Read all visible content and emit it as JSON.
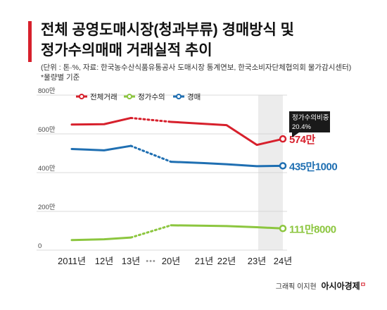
{
  "title_lines": [
    "전체 공영도매시장(청과부류) 경매방식 및",
    "정가수의매매 거래실적 추이"
  ],
  "source": "(단위 : 톤·%, 자료: 한국농수산식품유통공사 도매시장 통계연보, 한국소비자단체협의회 물가감시센터)",
  "note": "*물량별 기준",
  "credit": {
    "prefix": "그래픽 이지현",
    "brand": "아시아경제",
    "brand_mark": "ㅁ"
  },
  "colors": {
    "red": "#d7202c",
    "green": "#8cc63f",
    "blue": "#1f6fb2",
    "title_bar": "#d7202c"
  },
  "chart_data": {
    "type": "line",
    "categories": [
      "2011년",
      "12년",
      "13년",
      "20년",
      "21년",
      "22년",
      "23년",
      "24년"
    ],
    "gap_marker": "•••",
    "gap_after_index": 2,
    "ylim": [
      0,
      8000000
    ],
    "yticks": [
      {
        "value": 0,
        "label": "0"
      },
      {
        "value": 2000000,
        "label": "200만"
      },
      {
        "value": 4000000,
        "label": "400만"
      },
      {
        "value": 6000000,
        "label": "600만"
      },
      {
        "value": 8000000,
        "label": "800만"
      }
    ],
    "series": [
      {
        "name": "전체거래",
        "color": "#d7202c",
        "values": [
          6480000,
          6500000,
          6820000,
          6620000,
          6520000,
          6450000,
          5430000,
          5740000
        ],
        "end_label": "574만"
      },
      {
        "name": "정가수의",
        "color": "#8cc63f",
        "values": [
          520000,
          560000,
          650000,
          1280000,
          1260000,
          1240000,
          1180000,
          1118000
        ],
        "end_label": "111만8000"
      },
      {
        "name": "경매",
        "color": "#1f6fb2",
        "values": [
          5220000,
          5150000,
          5380000,
          4560000,
          4490000,
          4430000,
          4330000,
          4351000
        ],
        "end_label": "435만1000"
      }
    ],
    "annotation": {
      "label": "정가수의비중",
      "value": "20.4%"
    },
    "highlight_category": "24년"
  }
}
